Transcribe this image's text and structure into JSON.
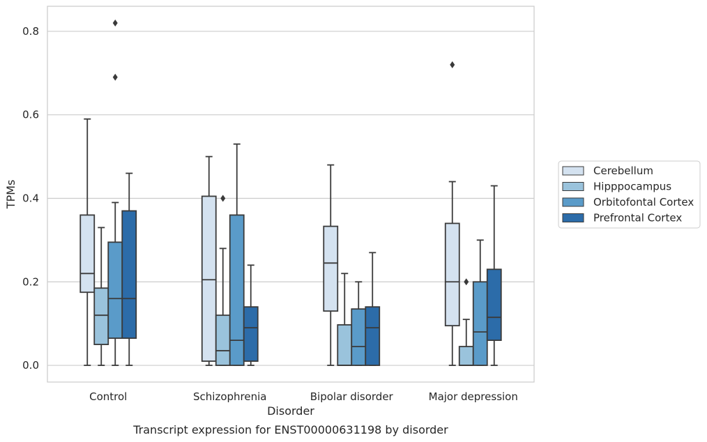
{
  "chart_data": {
    "type": "boxplot",
    "caption": "Transcript expression for ENST00000631198 by disorder",
    "xlabel": "Disorder",
    "ylabel": "TPMs",
    "ylim": [
      -0.04,
      0.86
    ],
    "yticks": [
      0.0,
      0.2,
      0.4,
      0.6,
      0.8
    ],
    "ytick_labels": [
      "0.0",
      "0.2",
      "0.4",
      "0.6",
      "0.8"
    ],
    "grid": "horizontal",
    "legend_position": "right",
    "categories": [
      "Control",
      "Schizophrenia",
      "Bipolar disorder",
      "Major depression"
    ],
    "series": [
      {
        "name": "Cerebellum",
        "color": "#d4e2f0",
        "boxes": [
          {
            "whisker_low": 0.0,
            "q1": 0.175,
            "median": 0.22,
            "q3": 0.36,
            "whisker_high": 0.59,
            "outliers": []
          },
          {
            "whisker_low": 0.0,
            "q1": 0.01,
            "median": 0.205,
            "q3": 0.405,
            "whisker_high": 0.5,
            "outliers": []
          },
          {
            "whisker_low": 0.0,
            "q1": 0.13,
            "median": 0.245,
            "q3": 0.333,
            "whisker_high": 0.48,
            "outliers": []
          },
          {
            "whisker_low": 0.0,
            "q1": 0.095,
            "median": 0.2,
            "q3": 0.34,
            "whisker_high": 0.44,
            "outliers": [
              0.72
            ]
          }
        ]
      },
      {
        "name": "Hipppocampus",
        "color": "#9ac3dc",
        "boxes": [
          {
            "whisker_low": 0.0,
            "q1": 0.05,
            "median": 0.12,
            "q3": 0.185,
            "whisker_high": 0.33,
            "outliers": []
          },
          {
            "whisker_low": 0.0,
            "q1": 0.0,
            "median": 0.035,
            "q3": 0.12,
            "whisker_high": 0.28,
            "outliers": [
              0.4
            ]
          },
          {
            "whisker_low": 0.0,
            "q1": 0.0,
            "median": 0.0,
            "q3": 0.097,
            "whisker_high": 0.22,
            "outliers": []
          },
          {
            "whisker_low": 0.0,
            "q1": 0.0,
            "median": 0.0,
            "q3": 0.045,
            "whisker_high": 0.11,
            "outliers": [
              0.2
            ]
          }
        ]
      },
      {
        "name": "Orbitofontal Cortex",
        "color": "#5a9bc9",
        "boxes": [
          {
            "whisker_low": 0.0,
            "q1": 0.065,
            "median": 0.16,
            "q3": 0.295,
            "whisker_high": 0.39,
            "outliers": [
              0.69,
              0.82
            ]
          },
          {
            "whisker_low": 0.0,
            "q1": 0.0,
            "median": 0.06,
            "q3": 0.36,
            "whisker_high": 0.53,
            "outliers": []
          },
          {
            "whisker_low": 0.0,
            "q1": 0.0,
            "median": 0.045,
            "q3": 0.135,
            "whisker_high": 0.2,
            "outliers": []
          },
          {
            "whisker_low": 0.0,
            "q1": 0.0,
            "median": 0.08,
            "q3": 0.2,
            "whisker_high": 0.3,
            "outliers": []
          }
        ]
      },
      {
        "name": "Prefrontal Cortex",
        "color": "#2c6ca9",
        "boxes": [
          {
            "whisker_low": 0.0,
            "q1": 0.065,
            "median": 0.16,
            "q3": 0.37,
            "whisker_high": 0.46,
            "outliers": []
          },
          {
            "whisker_low": 0.0,
            "q1": 0.01,
            "median": 0.09,
            "q3": 0.14,
            "whisker_high": 0.24,
            "outliers": []
          },
          {
            "whisker_low": 0.0,
            "q1": 0.0,
            "median": 0.09,
            "q3": 0.14,
            "whisker_high": 0.27,
            "outliers": []
          },
          {
            "whisker_low": 0.0,
            "q1": 0.06,
            "median": 0.115,
            "q3": 0.23,
            "whisker_high": 0.43,
            "outliers": []
          }
        ]
      }
    ]
  }
}
